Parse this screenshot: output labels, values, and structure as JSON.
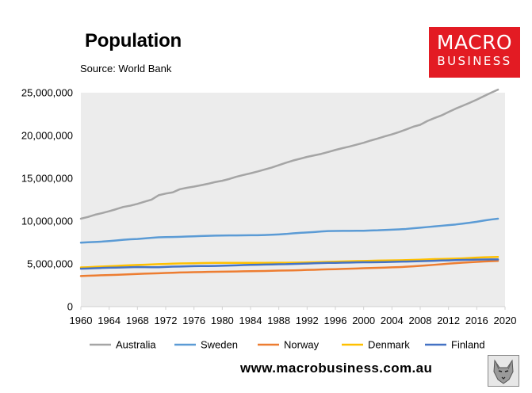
{
  "header": {
    "title": "Population",
    "source": "Source: World Bank"
  },
  "logo": {
    "line1": "MACRO",
    "line2": "BUSINESS",
    "color": "#e31b23"
  },
  "footer": {
    "website": "www.macrobusiness.com.au"
  },
  "colors": {
    "plot_background": "#ececec",
    "axis": "#d0d0d0"
  },
  "chart_data": {
    "type": "line",
    "title": "Population",
    "xlabel": "",
    "ylabel": "",
    "xlim": [
      1960,
      2020
    ],
    "ylim": [
      0,
      25000000
    ],
    "grid": false,
    "legend": "bottom",
    "x_tick_labels": [
      "1960",
      "1964",
      "1968",
      "1972",
      "1976",
      "1980",
      "1984",
      "1988",
      "1992",
      "1996",
      "2000",
      "2004",
      "2008",
      "2012",
      "2016",
      "2020"
    ],
    "y_tick_labels": [
      "0",
      "5,000,000",
      "10,000,000",
      "15,000,000",
      "20,000,000",
      "25,000,000"
    ],
    "x": [
      1960,
      1961,
      1962,
      1963,
      1964,
      1965,
      1966,
      1967,
      1968,
      1969,
      1970,
      1971,
      1972,
      1973,
      1974,
      1975,
      1976,
      1977,
      1978,
      1979,
      1980,
      1981,
      1982,
      1983,
      1984,
      1985,
      1986,
      1987,
      1988,
      1989,
      1990,
      1991,
      1992,
      1993,
      1994,
      1995,
      1996,
      1997,
      1998,
      1999,
      2000,
      2001,
      2002,
      2003,
      2004,
      2005,
      2006,
      2007,
      2008,
      2009,
      2010,
      2011,
      2012,
      2013,
      2014,
      2015,
      2016,
      2017,
      2018,
      2019
    ],
    "series": [
      {
        "name": "Australia",
        "color": "#a5a5a5",
        "values": [
          10280000,
          10480000,
          10740000,
          10930000,
          11150000,
          11390000,
          11650000,
          11800000,
          12010000,
          12260000,
          12510000,
          13020000,
          13210000,
          13360000,
          13720000,
          13890000,
          14030000,
          14190000,
          14360000,
          14560000,
          14710000,
          14920000,
          15180000,
          15390000,
          15580000,
          15790000,
          16020000,
          16260000,
          16530000,
          16810000,
          17070000,
          17280000,
          17500000,
          17670000,
          17850000,
          18070000,
          18310000,
          18520000,
          18710000,
          18930000,
          19150000,
          19410000,
          19650000,
          19900000,
          20130000,
          20400000,
          20700000,
          21020000,
          21250000,
          21690000,
          22030000,
          22340000,
          22740000,
          23130000,
          23470000,
          23820000,
          24190000,
          24600000,
          24990000,
          25360000
        ]
      },
      {
        "name": "Sweden",
        "color": "#5b9bd5",
        "values": [
          7480000,
          7520000,
          7560000,
          7600000,
          7660000,
          7730000,
          7810000,
          7870000,
          7910000,
          7970000,
          8040000,
          8100000,
          8120000,
          8140000,
          8160000,
          8190000,
          8220000,
          8250000,
          8280000,
          8300000,
          8310000,
          8320000,
          8320000,
          8330000,
          8340000,
          8350000,
          8370000,
          8400000,
          8440000,
          8490000,
          8560000,
          8620000,
          8670000,
          8720000,
          8780000,
          8830000,
          8840000,
          8850000,
          8850000,
          8860000,
          8870000,
          8900000,
          8920000,
          8960000,
          8990000,
          9030000,
          9080000,
          9150000,
          9220000,
          9300000,
          9380000,
          9450000,
          9520000,
          9600000,
          9700000,
          9800000,
          9920000,
          10060000,
          10180000,
          10280000
        ]
      },
      {
        "name": "Norway",
        "color": "#ed7d31",
        "values": [
          3580000,
          3610000,
          3640000,
          3670000,
          3690000,
          3720000,
          3750000,
          3790000,
          3820000,
          3850000,
          3880000,
          3900000,
          3930000,
          3960000,
          3990000,
          4010000,
          4030000,
          4040000,
          4060000,
          4070000,
          4090000,
          4100000,
          4110000,
          4130000,
          4140000,
          4150000,
          4170000,
          4190000,
          4210000,
          4230000,
          4240000,
          4260000,
          4290000,
          4310000,
          4340000,
          4360000,
          4380000,
          4410000,
          4430000,
          4460000,
          4490000,
          4510000,
          4540000,
          4560000,
          4590000,
          4620000,
          4660000,
          4710000,
          4770000,
          4830000,
          4890000,
          4950000,
          5020000,
          5080000,
          5140000,
          5190000,
          5230000,
          5280000,
          5310000,
          5350000
        ]
      },
      {
        "name": "Denmark",
        "color": "#ffc000",
        "values": [
          4580000,
          4610000,
          4650000,
          4690000,
          4720000,
          4760000,
          4800000,
          4840000,
          4870000,
          4900000,
          4930000,
          4960000,
          4990000,
          5020000,
          5050000,
          5060000,
          5070000,
          5090000,
          5100000,
          5110000,
          5120000,
          5120000,
          5120000,
          5110000,
          5110000,
          5110000,
          5120000,
          5130000,
          5130000,
          5130000,
          5140000,
          5150000,
          5170000,
          5190000,
          5210000,
          5230000,
          5260000,
          5280000,
          5300000,
          5320000,
          5340000,
          5360000,
          5380000,
          5390000,
          5400000,
          5420000,
          5440000,
          5460000,
          5490000,
          5520000,
          5550000,
          5570000,
          5590000,
          5610000,
          5640000,
          5680000,
          5730000,
          5760000,
          5790000,
          5810000
        ]
      },
      {
        "name": "Finland",
        "color": "#4472c4",
        "values": [
          4430000,
          4460000,
          4490000,
          4520000,
          4550000,
          4560000,
          4580000,
          4610000,
          4630000,
          4620000,
          4610000,
          4610000,
          4640000,
          4670000,
          4690000,
          4710000,
          4730000,
          4740000,
          4750000,
          4760000,
          4780000,
          4800000,
          4830000,
          4860000,
          4880000,
          4900000,
          4920000,
          4930000,
          4950000,
          4960000,
          4990000,
          5010000,
          5040000,
          5070000,
          5090000,
          5110000,
          5120000,
          5140000,
          5150000,
          5170000,
          5180000,
          5190000,
          5200000,
          5210000,
          5230000,
          5250000,
          5270000,
          5290000,
          5310000,
          5340000,
          5360000,
          5390000,
          5410000,
          5440000,
          5460000,
          5480000,
          5500000,
          5510000,
          5520000,
          5520000
        ]
      }
    ]
  }
}
